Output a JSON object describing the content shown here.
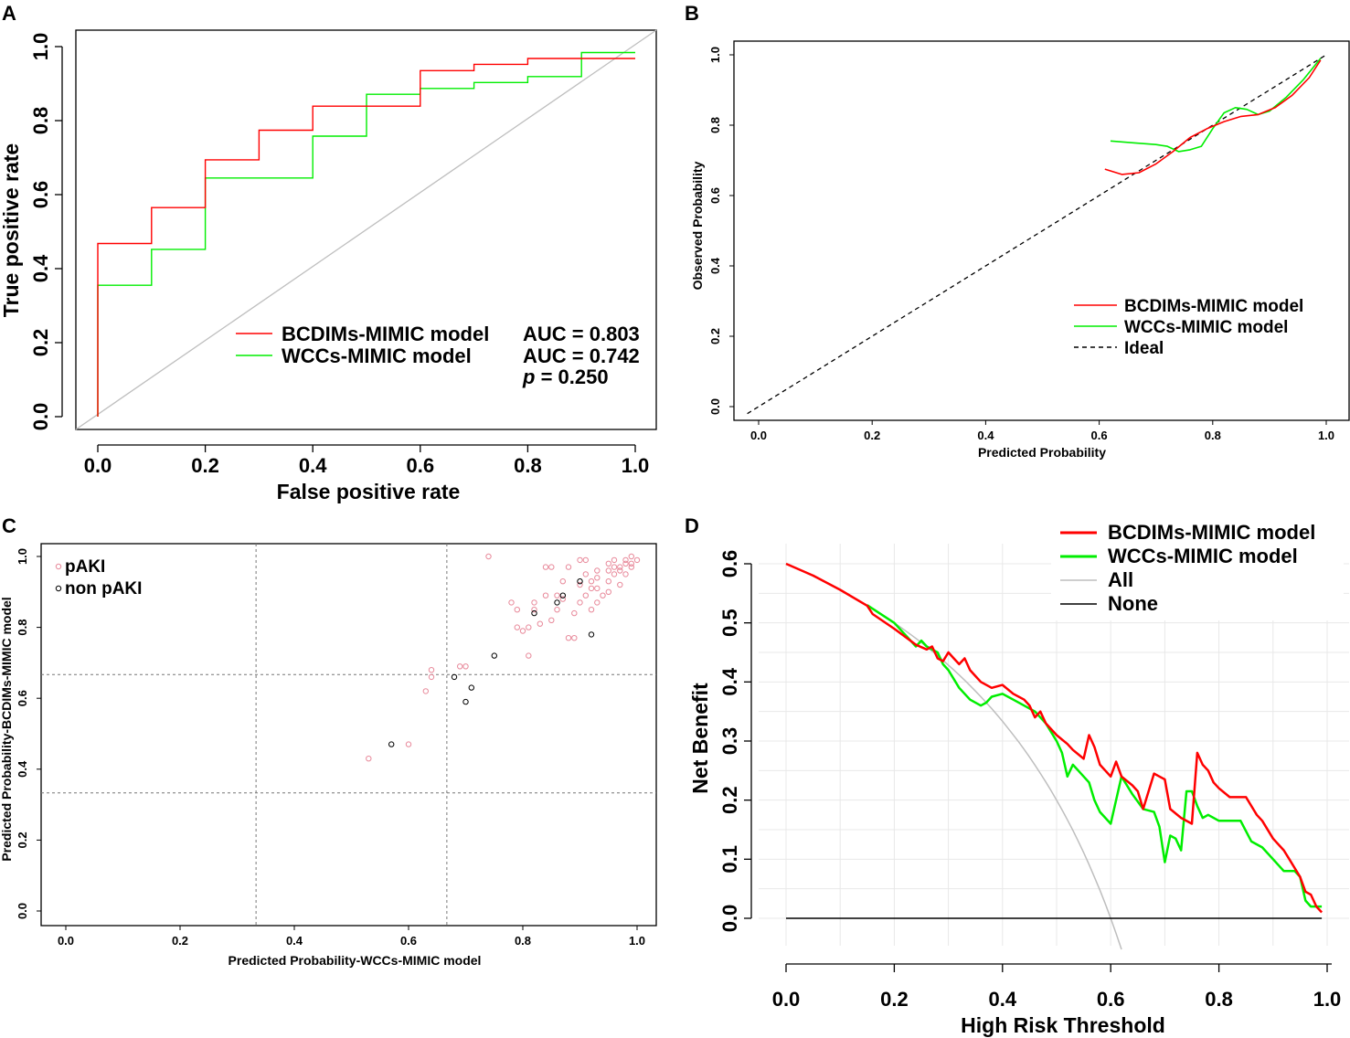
{
  "colors": {
    "red": "#ff0000",
    "green": "#00ee00",
    "gray": "#bebebe",
    "black": "#000000",
    "pink": "#e8899a"
  },
  "chart_data": [
    {
      "panel": "A",
      "type": "line",
      "subtype": "roc-step",
      "xlabel": "False positive rate",
      "ylabel": "True positive rate",
      "xlim": [
        0,
        1
      ],
      "ylim": [
        0,
        1
      ],
      "xticks": [
        "0.0",
        "0.2",
        "0.4",
        "0.6",
        "0.8",
        "1.0"
      ],
      "yticks": [
        "0.0",
        "0.2",
        "0.4",
        "0.6",
        "0.8",
        "1.0"
      ],
      "series": [
        {
          "name": "BCDIMs-MIMIC model",
          "color": "#ff0000",
          "x": [
            0,
            0,
            0.1,
            0.1,
            0.2,
            0.2,
            0.3,
            0.3,
            0.4,
            0.4,
            0.6,
            0.6,
            0.7,
            0.7,
            0.8,
            0.8,
            1.0,
            1.0
          ],
          "y": [
            0,
            0.468,
            0.468,
            0.565,
            0.565,
            0.694,
            0.694,
            0.774,
            0.774,
            0.839,
            0.839,
            0.935,
            0.935,
            0.952,
            0.952,
            0.968,
            0.968,
            0.968
          ]
        },
        {
          "name": "WCCs-MIMIC model",
          "color": "#00ee00",
          "x": [
            0,
            0,
            0.1,
            0.1,
            0.2,
            0.2,
            0.4,
            0.4,
            0.5,
            0.5,
            0.6,
            0.6,
            0.7,
            0.7,
            0.8,
            0.8,
            0.9,
            0.9,
            1.0
          ],
          "y": [
            0,
            0.355,
            0.355,
            0.452,
            0.452,
            0.645,
            0.645,
            0.758,
            0.758,
            0.871,
            0.871,
            0.887,
            0.887,
            0.903,
            0.903,
            0.919,
            0.919,
            0.984,
            0.984
          ]
        }
      ],
      "legend": [
        {
          "label": "BCDIMs-MIMIC model",
          "auc": "AUC = 0.803"
        },
        {
          "label": "WCCs-MIMIC model",
          "auc": "AUC = 0.742"
        }
      ],
      "p_label": "p",
      "p_value": " = 0.250"
    },
    {
      "panel": "B",
      "type": "line",
      "subtype": "calibration",
      "xlabel": "Predicted Probability",
      "ylabel": "Observed Probability",
      "xlim": [
        0,
        1
      ],
      "ylim": [
        0,
        1
      ],
      "xticks": [
        "0.0",
        "0.2",
        "0.4",
        "0.6",
        "0.8",
        "1.0"
      ],
      "yticks": [
        "0.0",
        "0.2",
        "0.4",
        "0.6",
        "0.8",
        "1.0"
      ],
      "series": [
        {
          "name": "BCDIMs-MIMIC model",
          "color": "#ff0000",
          "x": [
            0.61,
            0.64,
            0.67,
            0.7,
            0.73,
            0.76,
            0.79,
            0.82,
            0.85,
            0.88,
            0.91,
            0.94,
            0.97,
            0.99
          ],
          "y": [
            0.675,
            0.66,
            0.665,
            0.69,
            0.725,
            0.765,
            0.79,
            0.81,
            0.825,
            0.83,
            0.85,
            0.885,
            0.935,
            0.985
          ]
        },
        {
          "name": "WCCs-MIMIC model",
          "color": "#00ee00",
          "x": [
            0.62,
            0.66,
            0.7,
            0.72,
            0.74,
            0.76,
            0.78,
            0.8,
            0.82,
            0.84,
            0.86,
            0.88,
            0.9,
            0.93,
            0.96,
            0.99
          ],
          "y": [
            0.755,
            0.75,
            0.745,
            0.74,
            0.725,
            0.73,
            0.74,
            0.79,
            0.835,
            0.85,
            0.845,
            0.83,
            0.84,
            0.88,
            0.93,
            0.99
          ]
        },
        {
          "name": "Ideal",
          "color": "#000000",
          "dashed": true,
          "x": [
            -0.02,
            1.0
          ],
          "y": [
            -0.02,
            1.0
          ]
        }
      ],
      "legend": [
        "BCDIMs-MIMIC model",
        "WCCs-MIMIC model",
        "Ideal"
      ]
    },
    {
      "panel": "C",
      "type": "scatter",
      "xlabel": "Predicted Probability-WCCs-MIMIC model",
      "ylabel": "Predicted Probability-BCDIMs-MIMIC model",
      "xlim": [
        0,
        1
      ],
      "ylim": [
        0,
        1
      ],
      "xticks": [
        "0.0",
        "0.2",
        "0.4",
        "0.6",
        "0.8",
        "1.0"
      ],
      "yticks": [
        "0.0",
        "0.2",
        "0.4",
        "0.6",
        "0.8",
        "1.0"
      ],
      "threshold_lines": [
        0.333,
        0.667
      ],
      "legend": [
        "pAKI",
        "non pAKI"
      ],
      "series": [
        {
          "name": "pAKI",
          "color": "#e8899a",
          "points": [
            [
              0.53,
              0.43
            ],
            [
              0.6,
              0.47
            ],
            [
              0.63,
              0.62
            ],
            [
              0.64,
              0.66
            ],
            [
              0.64,
              0.68
            ],
            [
              0.69,
              0.69
            ],
            [
              0.7,
              0.69
            ],
            [
              0.74,
              1.0
            ],
            [
              0.78,
              0.87
            ],
            [
              0.79,
              0.85
            ],
            [
              0.79,
              0.8
            ],
            [
              0.8,
              0.79
            ],
            [
              0.81,
              0.72
            ],
            [
              0.81,
              0.8
            ],
            [
              0.82,
              0.85
            ],
            [
              0.82,
              0.87
            ],
            [
              0.83,
              0.81
            ],
            [
              0.84,
              0.97
            ],
            [
              0.84,
              0.89
            ],
            [
              0.85,
              0.82
            ],
            [
              0.85,
              0.97
            ],
            [
              0.86,
              0.85
            ],
            [
              0.86,
              0.89
            ],
            [
              0.87,
              0.93
            ],
            [
              0.87,
              0.88
            ],
            [
              0.88,
              0.77
            ],
            [
              0.88,
              0.97
            ],
            [
              0.89,
              0.84
            ],
            [
              0.89,
              0.77
            ],
            [
              0.9,
              0.87
            ],
            [
              0.9,
              0.92
            ],
            [
              0.9,
              0.99
            ],
            [
              0.91,
              0.95
            ],
            [
              0.91,
              0.89
            ],
            [
              0.91,
              0.99
            ],
            [
              0.92,
              0.91
            ],
            [
              0.92,
              0.93
            ],
            [
              0.92,
              0.85
            ],
            [
              0.93,
              0.96
            ],
            [
              0.93,
              0.87
            ],
            [
              0.93,
              0.94
            ],
            [
              0.94,
              0.89
            ],
            [
              0.95,
              0.98
            ],
            [
              0.95,
              0.9
            ],
            [
              0.95,
              0.93
            ],
            [
              0.96,
              0.99
            ],
            [
              0.96,
              0.95
            ],
            [
              0.96,
              0.97
            ],
            [
              0.97,
              0.97
            ],
            [
              0.97,
              0.92
            ],
            [
              0.97,
              0.96
            ],
            [
              0.98,
              0.98
            ],
            [
              0.98,
              0.95
            ],
            [
              0.98,
              0.99
            ],
            [
              0.99,
              1.0
            ],
            [
              0.99,
              0.98
            ],
            [
              1.0,
              0.99
            ],
            [
              0.99,
              0.97
            ],
            [
              0.95,
              0.96
            ],
            [
              0.93,
              0.91
            ]
          ]
        },
        {
          "name": "non pAKI",
          "color": "#000000",
          "points": [
            [
              0.57,
              0.47
            ],
            [
              0.68,
              0.66
            ],
            [
              0.7,
              0.59
            ],
            [
              0.71,
              0.63
            ],
            [
              0.75,
              0.72
            ],
            [
              0.82,
              0.84
            ],
            [
              0.86,
              0.87
            ],
            [
              0.87,
              0.89
            ],
            [
              0.9,
              0.93
            ],
            [
              0.92,
              0.78
            ]
          ]
        }
      ]
    },
    {
      "panel": "D",
      "type": "line",
      "subtype": "decision-curve",
      "xlabel": "High Risk Threshold",
      "ylabel": "Net Benefit",
      "xlim": [
        0,
        1
      ],
      "ylim": [
        0,
        0.6
      ],
      "xticks": [
        "0.0",
        "0.2",
        "0.4",
        "0.6",
        "0.8",
        "1.0"
      ],
      "yticks": [
        "0.0",
        "0.1",
        "0.2",
        "0.3",
        "0.4",
        "0.5",
        "0.6"
      ],
      "prevalence": 0.6,
      "series": [
        {
          "name": "BCDIMs-MIMIC model",
          "color": "#ff0000",
          "x": [
            0.0,
            0.05,
            0.1,
            0.15,
            0.16,
            0.2,
            0.24,
            0.26,
            0.27,
            0.28,
            0.29,
            0.3,
            0.31,
            0.32,
            0.33,
            0.34,
            0.35,
            0.36,
            0.38,
            0.4,
            0.42,
            0.44,
            0.45,
            0.46,
            0.47,
            0.48,
            0.5,
            0.52,
            0.53,
            0.55,
            0.56,
            0.57,
            0.58,
            0.6,
            0.61,
            0.62,
            0.64,
            0.65,
            0.66,
            0.68,
            0.69,
            0.7,
            0.71,
            0.73,
            0.75,
            0.76,
            0.77,
            0.78,
            0.79,
            0.8,
            0.82,
            0.83,
            0.85,
            0.87,
            0.88,
            0.9,
            0.91,
            0.92,
            0.93,
            0.94,
            0.95,
            0.96,
            0.97,
            0.98,
            0.99
          ],
          "y": [
            0.6,
            0.58,
            0.556,
            0.529,
            0.515,
            0.49,
            0.463,
            0.455,
            0.46,
            0.44,
            0.435,
            0.45,
            0.44,
            0.43,
            0.44,
            0.42,
            0.41,
            0.4,
            0.39,
            0.395,
            0.38,
            0.37,
            0.36,
            0.34,
            0.35,
            0.33,
            0.31,
            0.295,
            0.285,
            0.27,
            0.31,
            0.29,
            0.26,
            0.24,
            0.265,
            0.24,
            0.225,
            0.215,
            0.185,
            0.245,
            0.24,
            0.235,
            0.185,
            0.17,
            0.16,
            0.28,
            0.26,
            0.25,
            0.23,
            0.22,
            0.205,
            0.205,
            0.205,
            0.175,
            0.165,
            0.135,
            0.125,
            0.115,
            0.1,
            0.085,
            0.07,
            0.045,
            0.04,
            0.02,
            0.01
          ]
        },
        {
          "name": "WCCs-MIMIC model",
          "color": "#00ee00",
          "x": [
            0.15,
            0.2,
            0.24,
            0.25,
            0.26,
            0.27,
            0.28,
            0.29,
            0.3,
            0.32,
            0.34,
            0.36,
            0.37,
            0.38,
            0.4,
            0.42,
            0.44,
            0.46,
            0.48,
            0.5,
            0.51,
            0.52,
            0.53,
            0.54,
            0.56,
            0.57,
            0.58,
            0.6,
            0.62,
            0.64,
            0.66,
            0.68,
            0.69,
            0.7,
            0.71,
            0.72,
            0.73,
            0.74,
            0.75,
            0.76,
            0.77,
            0.78,
            0.8,
            0.82,
            0.84,
            0.86,
            0.88,
            0.9,
            0.92,
            0.94,
            0.95,
            0.96,
            0.97,
            0.98,
            0.99
          ],
          "y": [
            0.53,
            0.5,
            0.46,
            0.47,
            0.46,
            0.455,
            0.45,
            0.43,
            0.42,
            0.39,
            0.37,
            0.36,
            0.365,
            0.375,
            0.38,
            0.37,
            0.36,
            0.35,
            0.33,
            0.3,
            0.28,
            0.24,
            0.26,
            0.25,
            0.23,
            0.2,
            0.18,
            0.16,
            0.24,
            0.21,
            0.185,
            0.18,
            0.155,
            0.095,
            0.14,
            0.135,
            0.115,
            0.215,
            0.215,
            0.19,
            0.17,
            0.175,
            0.165,
            0.165,
            0.165,
            0.13,
            0.12,
            0.1,
            0.08,
            0.08,
            0.07,
            0.03,
            0.02,
            0.02,
            0.02
          ]
        },
        {
          "name": "All",
          "color": "#bebebe",
          "formula": "0.6 - 0.4*pt/(1-pt)"
        },
        {
          "name": "None",
          "color": "#000000",
          "x": [
            0,
            0.99
          ],
          "y": [
            0,
            0
          ]
        }
      ],
      "legend": [
        "BCDIMs-MIMIC model",
        "WCCs-MIMIC model",
        "All",
        "None"
      ]
    }
  ]
}
